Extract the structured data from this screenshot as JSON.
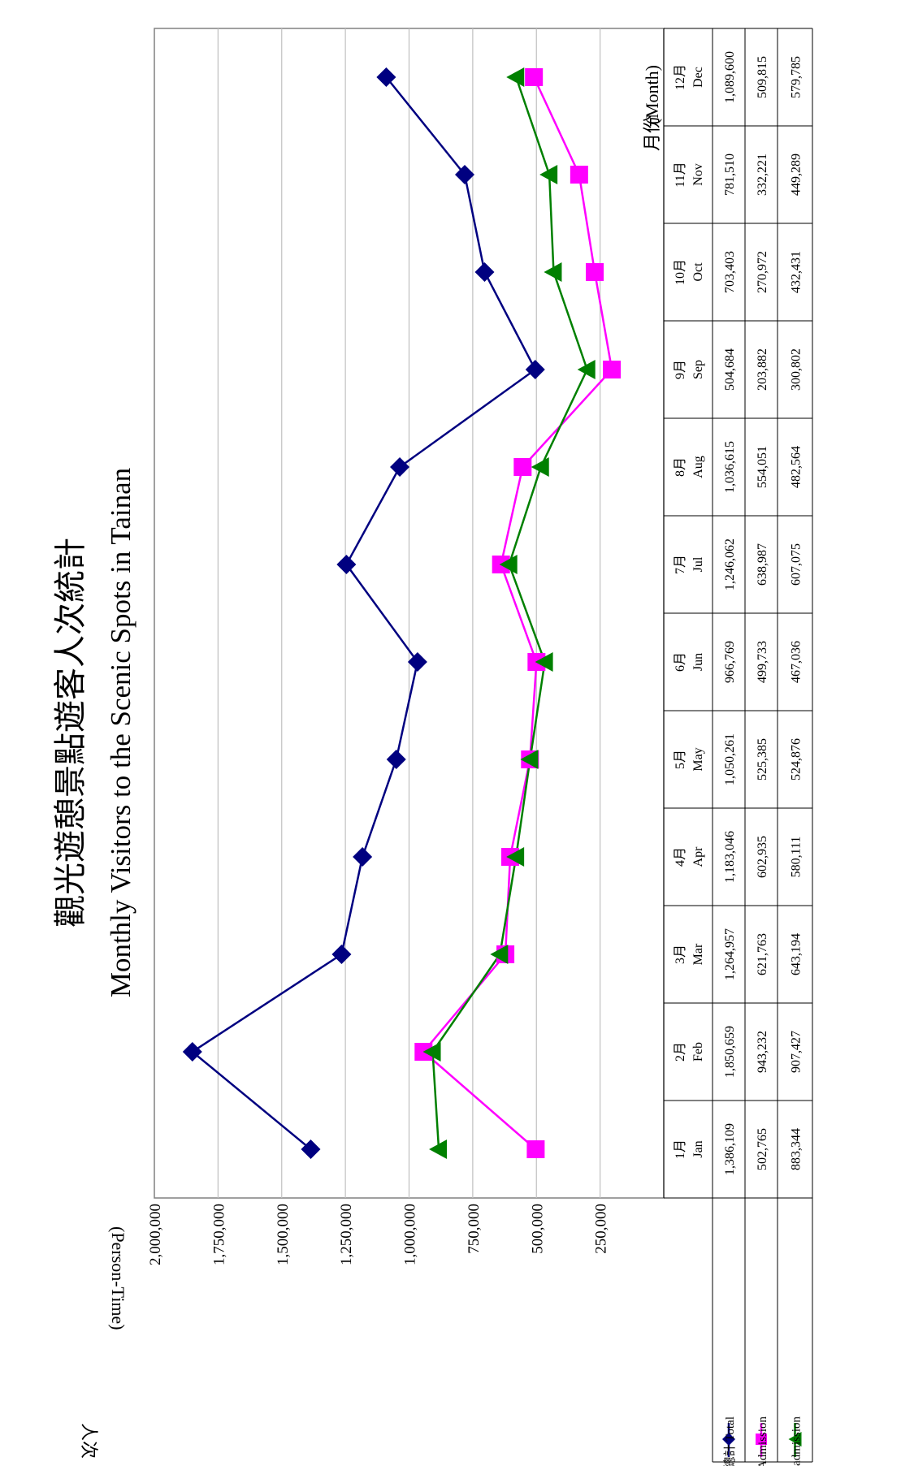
{
  "chart_data": {
    "type": "line",
    "title": "觀光遊憩景點遊客人次統計",
    "subtitle": "Monthly Visitors to the Scenic Spots in Tainan",
    "ylabel": "人次",
    "ylabel_en": "(Person-Time)",
    "xlabel": "月份",
    "xlabel_en": "(Month)",
    "ylim": [
      0,
      2000000
    ],
    "yticks": [
      "2,000,000",
      "1,750,000",
      "1,500,000",
      "1,250,000",
      "1,000,000",
      "750,000",
      "500,000",
      "250,000"
    ],
    "grid": true,
    "categories": [
      {
        "cn": "1月",
        "en": "Jan"
      },
      {
        "cn": "2月",
        "en": "Feb"
      },
      {
        "cn": "3月",
        "en": "Mar"
      },
      {
        "cn": "4月",
        "en": "Apr"
      },
      {
        "cn": "5月",
        "en": "May"
      },
      {
        "cn": "6月",
        "en": "Jun"
      },
      {
        "cn": "7月",
        "en": "Jul"
      },
      {
        "cn": "8月",
        "en": "Aug"
      },
      {
        "cn": "9月",
        "en": "Sep"
      },
      {
        "cn": "10月",
        "en": "Oct"
      },
      {
        "cn": "11月",
        "en": "Nov"
      },
      {
        "cn": "12月",
        "en": "Dec"
      }
    ],
    "series": [
      {
        "name": "總計 Total",
        "name_cn": "總計",
        "name_en": "Total",
        "color": "#000080",
        "marker": "diamond",
        "values": [
          1386109,
          1850659,
          1264957,
          1183046,
          1050261,
          966769,
          1246062,
          1036615,
          504684,
          703403,
          781510,
          1089600
        ],
        "labels": [
          "1,386,109",
          "1,850,659",
          "1,264,957",
          "1,183,046",
          "1,050,261",
          "966,769",
          "1,246,062",
          "1,036,615",
          "504,684",
          "703,403",
          "781,510",
          "1,089,600"
        ]
      },
      {
        "name": "有門票 Admission",
        "name_cn": "有門票",
        "name_en": "Admission",
        "color": "#ff00ff",
        "marker": "square",
        "values": [
          502765,
          943232,
          621763,
          602935,
          525385,
          499733,
          638987,
          554051,
          203882,
          270972,
          332221,
          509815
        ],
        "labels": [
          "502,765",
          "943,232",
          "621,763",
          "602,935",
          "525,385",
          "499,733",
          "638,987",
          "554,051",
          "203,882",
          "270,972",
          "332,221",
          "509,815"
        ]
      },
      {
        "name": "無門票 Free admission",
        "name_cn": "無門票",
        "name_en": "Free admission",
        "color": "#008000",
        "marker": "triangle",
        "values": [
          883344,
          907427,
          643194,
          580111,
          524876,
          467036,
          607075,
          482564,
          300802,
          432431,
          449289,
          579785
        ],
        "labels": [
          "883,344",
          "907,427",
          "643,194",
          "580,111",
          "524,876",
          "467,036",
          "607,075",
          "482,564",
          "300,802",
          "432,431",
          "449,289",
          "579,785"
        ]
      }
    ]
  }
}
